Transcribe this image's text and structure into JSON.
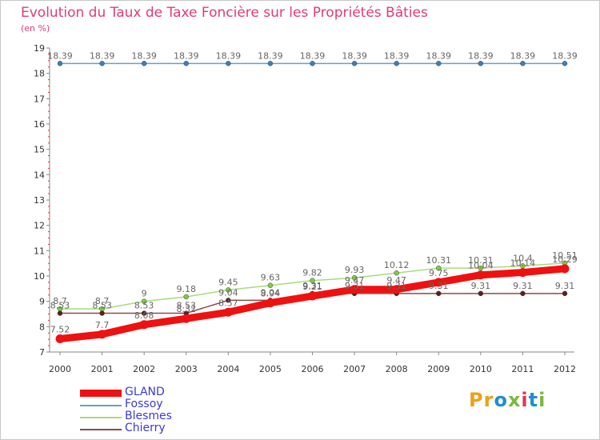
{
  "title": "Evolution du Taux de Taxe Foncière sur les Propriétés Bâties",
  "subtitle": "(en %)",
  "logo": {
    "text": "Proxiti",
    "letter_colors": [
      "#e9a21b",
      "#e9a21b",
      "#1d8fd0",
      "#7db83a",
      "#e2364f",
      "#1d8fd0",
      "#7db83a"
    ]
  },
  "chart_data": {
    "type": "line",
    "title": "Evolution du Taux de Taxe Foncière sur les Propriétés Bâties",
    "ylabel": "(en %)",
    "xlabel": "",
    "x": [
      "2000",
      "2001",
      "2002",
      "2003",
      "2004",
      "2005",
      "2006",
      "2007",
      "2008",
      "2009",
      "2010",
      "2011",
      "2012"
    ],
    "ylim": [
      7,
      19
    ],
    "yticks": [
      "7",
      "8",
      "9",
      "10",
      "11",
      "12",
      "13",
      "14",
      "15",
      "16",
      "17",
      "18",
      "19"
    ],
    "grid": false,
    "legend_position": "bottom-left",
    "series": [
      {
        "name": "GLAND",
        "color": "#ee1111",
        "values": [
          7.52,
          7.7,
          8.08,
          8.32,
          8.57,
          8.94,
          9.21,
          9.47,
          9.47,
          9.75,
          10.04,
          10.14,
          10.29
        ],
        "labels": [
          "7.52",
          "7.7",
          "8.08",
          "8.32",
          "8.57",
          "8.94",
          "9.21",
          "9.47",
          "9.47",
          "9.75",
          "10.04",
          "10.14",
          "10.29"
        ]
      },
      {
        "name": "Fossoy",
        "color": "#6a9ec7",
        "values": [
          18.39,
          18.39,
          18.39,
          18.39,
          18.39,
          18.39,
          18.39,
          18.39,
          18.39,
          18.39,
          18.39,
          18.39,
          18.39
        ],
        "labels": [
          "18.39",
          "18.39",
          "18.39",
          "18.39",
          "18.39",
          "18.39",
          "18.39",
          "18.39",
          "18.39",
          "18.39",
          "18.39",
          "18.39",
          "18.39"
        ]
      },
      {
        "name": "Blesmes",
        "color": "#a6dc7c",
        "values": [
          8.7,
          8.7,
          9.0,
          9.18,
          9.45,
          9.63,
          9.82,
          9.93,
          10.12,
          10.31,
          10.31,
          10.4,
          10.51
        ],
        "labels": [
          "8.7",
          "8.7",
          "9",
          "9.18",
          "9.45",
          "9.63",
          "9.82",
          "9.93",
          "10.12",
          "10.31",
          "10.31",
          "10.4",
          "10.51"
        ]
      },
      {
        "name": "Chierry",
        "color": "#8b4b4b",
        "values": [
          8.53,
          8.53,
          8.53,
          8.53,
          9.04,
          9.04,
          9.31,
          9.31,
          9.31,
          9.31,
          9.31,
          9.31,
          9.31
        ],
        "labels": [
          "8.53",
          "8.53",
          "8.53",
          "8.53",
          "9.04",
          "9.04",
          "9.31",
          "9.31",
          "9.31",
          "9.31",
          "9.31",
          "9.31",
          "9.31"
        ]
      }
    ]
  }
}
